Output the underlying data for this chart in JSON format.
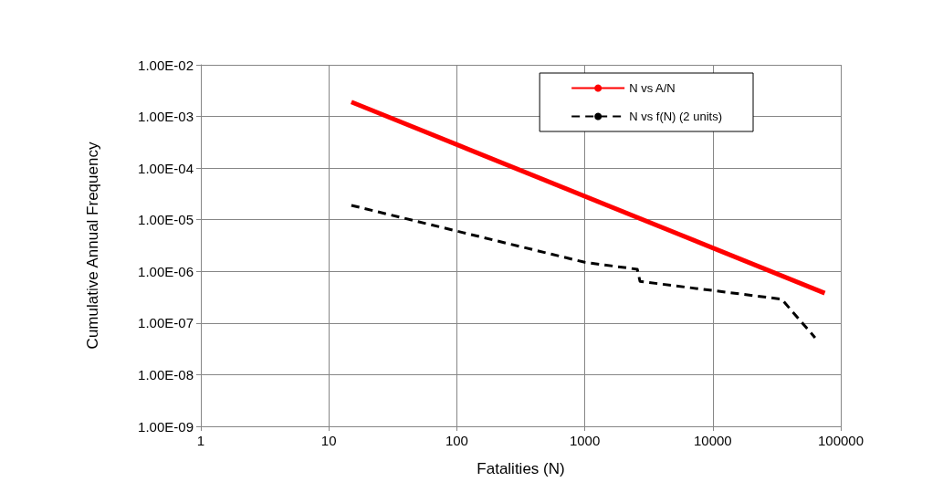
{
  "chart_data": {
    "type": "line",
    "xlabel": "Fatalities (N)",
    "ylabel": "Cumulative Annual Frequency",
    "log": "xy",
    "grid": true,
    "legend": "top right",
    "marker": "none",
    "xlim": [
      1,
      100000
    ],
    "xticks": [
      1,
      10,
      100,
      1000,
      10000,
      100000
    ],
    "ylim": [
      1e-09,
      0.01
    ],
    "yticks": [
      {
        "value": 1e-09,
        "label": "1.00E-09"
      },
      {
        "value": 1e-08,
        "label": "1.00E-08"
      },
      {
        "value": 1e-07,
        "label": "1.00E-07"
      },
      {
        "value": 1e-06,
        "label": "1.00E-06"
      },
      {
        "value": 1e-05,
        "label": "1.00E-05"
      },
      {
        "value": 0.0001,
        "label": "1.00E-04"
      },
      {
        "value": 0.001,
        "label": "1.00E-03"
      },
      {
        "value": 0.01,
        "label": "1.00E-02"
      }
    ],
    "series": [
      {
        "name": "N vs A/N",
        "color": "#ff0000",
        "line_style": "solid",
        "x": [
          15,
          75000
        ],
        "values": [
          0.0019,
          3.8e-07
        ]
      },
      {
        "name": "N vs f(N) (2 units)",
        "color": "#000000",
        "line_style": "dashed",
        "x": [
          15,
          1000,
          2570,
          2700,
          34500,
          63000
        ],
        "values": [
          1.9e-05,
          1.5e-06,
          1.1e-06,
          6.4e-07,
          2.9e-07,
          5.2e-08
        ]
      }
    ]
  }
}
